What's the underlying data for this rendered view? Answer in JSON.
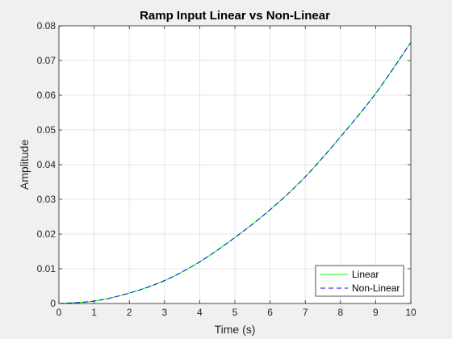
{
  "chart_data": {
    "type": "line",
    "title": "Ramp Input Linear vs Non-Linear",
    "xlabel": "Time (s)",
    "ylabel": "Amplitude",
    "xlim": [
      0,
      10
    ],
    "ylim": [
      0,
      0.08
    ],
    "xticks": [
      0,
      1,
      2,
      3,
      4,
      5,
      6,
      7,
      8,
      9,
      10
    ],
    "yticks": [
      0,
      0.01,
      0.02,
      0.03,
      0.04,
      0.05,
      0.06,
      0.07,
      0.08
    ],
    "xtick_labels": [
      "0",
      "1",
      "2",
      "3",
      "4",
      "5",
      "6",
      "7",
      "8",
      "9",
      "10"
    ],
    "ytick_labels": [
      "0",
      "0.01",
      "0.02",
      "0.03",
      "0.04",
      "0.05",
      "0.06",
      "0.07",
      "0.08"
    ],
    "grid": true,
    "legend_position": "bottom-right",
    "x": [
      0,
      1,
      2,
      3,
      4,
      5,
      6,
      7,
      8,
      9,
      10
    ],
    "series": [
      {
        "name": "Linear",
        "color": "#00ff00",
        "style": "solid",
        "values": [
          0,
          0.0007,
          0.003,
          0.0066,
          0.012,
          0.019,
          0.027,
          0.0365,
          0.048,
          0.0605,
          0.0752
        ]
      },
      {
        "name": "Non-Linear",
        "color": "#0000ff",
        "style": "dashed",
        "values": [
          0,
          0.0007,
          0.003,
          0.0066,
          0.012,
          0.019,
          0.027,
          0.0365,
          0.048,
          0.0605,
          0.0752
        ]
      }
    ]
  }
}
